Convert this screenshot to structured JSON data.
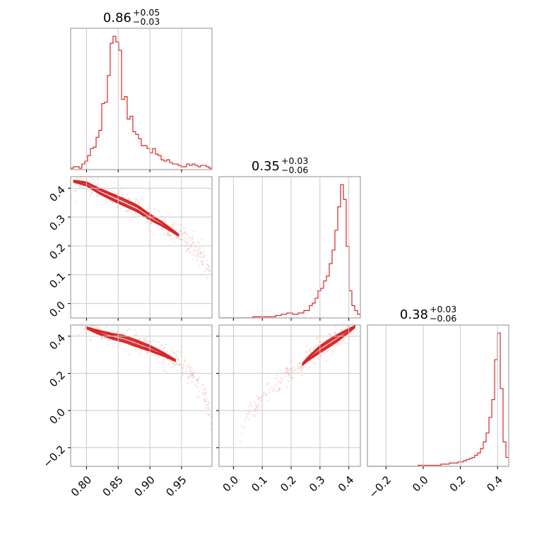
{
  "chart_data": {
    "type": "corner",
    "color": "#d62728",
    "grid": true,
    "parameters": [
      {
        "title_value": "0.86",
        "title_plus": "+0.05",
        "title_minus": "−0.03",
        "range": [
          0.775,
          0.998
        ],
        "ticks": [
          0.8,
          0.85,
          0.9,
          0.95
        ],
        "tick_labels": [
          "0.80",
          "0.85",
          "0.90",
          "0.95"
        ],
        "histogram": {
          "bin_start": 0.775,
          "bin_width": 0.00446,
          "counts": [
            1,
            2,
            2,
            1,
            4,
            6,
            10,
            15,
            16,
            23,
            28,
            47,
            48,
            67,
            90,
            95,
            91,
            85,
            50,
            52,
            36,
            38,
            27,
            25,
            22,
            17,
            17,
            15,
            12,
            15,
            11,
            10,
            7,
            6,
            7,
            5,
            4,
            4,
            3,
            2,
            2,
            4,
            3,
            4,
            3,
            2,
            3,
            3,
            2,
            1
          ]
        }
      },
      {
        "title_value": "0.35",
        "title_plus": "+0.03",
        "title_minus": "−0.06",
        "range": [
          -0.05,
          0.44
        ],
        "ticks": [
          0.0,
          0.1,
          0.2,
          0.3,
          0.4
        ],
        "tick_labels": [
          "0.0",
          "0.1",
          "0.2",
          "0.3",
          "0.4"
        ],
        "histogram": {
          "bin_start": -0.05,
          "bin_width": 0.0098,
          "counts": [
            0,
            0,
            0,
            0,
            0,
            0,
            0,
            0,
            0,
            0,
            0,
            0,
            1,
            1,
            1,
            1,
            1,
            1,
            1,
            1,
            2,
            2,
            3,
            3,
            4,
            4,
            3,
            3,
            4,
            4,
            6,
            6,
            10,
            12,
            16,
            22,
            24,
            30,
            34,
            44,
            55,
            71,
            90,
            108,
            96,
            58,
            22,
            10,
            6,
            3
          ]
        }
      },
      {
        "title_value": "0.38",
        "title_plus": "+0.03",
        "title_minus": "−0.06",
        "range": [
          -0.3,
          0.46
        ],
        "ticks": [
          -0.2,
          0.0,
          0.2,
          0.4
        ],
        "tick_labels": [
          "−0.2",
          "0.0",
          "0.2",
          "0.4"
        ],
        "histogram": {
          "bin_start": -0.3,
          "bin_width": 0.0152,
          "counts": [
            0,
            0,
            0,
            0,
            0,
            0,
            0,
            0,
            0,
            0,
            0,
            0,
            0,
            0,
            0,
            0,
            0,
            0,
            1,
            1,
            1,
            1,
            1,
            1,
            1,
            1,
            2,
            2,
            2,
            3,
            3,
            3,
            4,
            4,
            5,
            6,
            7,
            8,
            10,
            12,
            16,
            22,
            30,
            44,
            60,
            96,
            120,
            70,
            22,
            8
          ]
        }
      }
    ],
    "scatter_2d": [
      {
        "row": 1,
        "col": 0,
        "contour_ridge": [
          [
            0.778,
            0.425
          ],
          [
            0.8,
            0.415
          ],
          [
            0.82,
            0.39
          ],
          [
            0.84,
            0.37
          ],
          [
            0.86,
            0.35
          ],
          [
            0.88,
            0.33
          ],
          [
            0.9,
            0.3
          ],
          [
            0.92,
            0.275
          ],
          [
            0.94,
            0.245
          ],
          [
            0.96,
            0.215
          ],
          [
            0.98,
            0.17
          ],
          [
            0.995,
            0.12
          ]
        ],
        "scatter_spread": 0.02,
        "contour_span": [
          0.78,
          0.945
        ],
        "contour_widths": [
          0.012,
          0.008,
          0.004
        ]
      },
      {
        "row": 2,
        "col": 0,
        "contour_ridge": [
          [
            0.778,
            0.46
          ],
          [
            0.8,
            0.445
          ],
          [
            0.82,
            0.42
          ],
          [
            0.84,
            0.4
          ],
          [
            0.86,
            0.385
          ],
          [
            0.88,
            0.36
          ],
          [
            0.9,
            0.335
          ],
          [
            0.92,
            0.305
          ],
          [
            0.94,
            0.27
          ],
          [
            0.96,
            0.215
          ],
          [
            0.98,
            0.13
          ],
          [
            0.995,
            0.0
          ],
          [
            0.998,
            -0.1
          ]
        ],
        "scatter_spread": 0.03,
        "contour_span": [
          0.8,
          0.94
        ],
        "contour_widths": [
          0.018,
          0.011,
          0.005
        ]
      },
      {
        "row": 2,
        "col": 1,
        "contour_ridge": [
          [
            0.02,
            -0.12
          ],
          [
            0.06,
            0.0
          ],
          [
            0.1,
            0.07
          ],
          [
            0.14,
            0.13
          ],
          [
            0.18,
            0.18
          ],
          [
            0.22,
            0.22
          ],
          [
            0.26,
            0.28
          ],
          [
            0.3,
            0.33
          ],
          [
            0.34,
            0.37
          ],
          [
            0.38,
            0.41
          ],
          [
            0.42,
            0.45
          ]
        ],
        "scatter_spread": 0.03,
        "contour_span": [
          0.24,
          0.42
        ],
        "contour_widths": [
          0.02,
          0.012,
          0.006
        ]
      }
    ]
  }
}
